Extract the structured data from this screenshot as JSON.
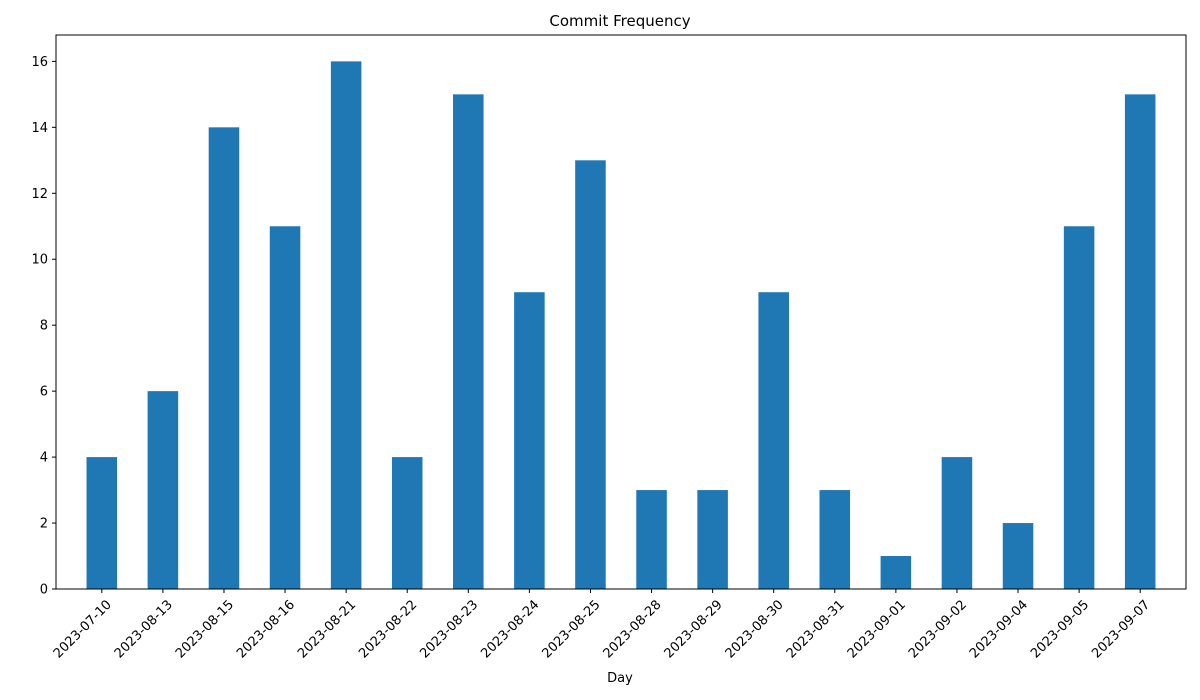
{
  "chart_data": {
    "type": "bar",
    "title": "Commit Frequency",
    "xlabel": "Day",
    "ylabel": "",
    "categories": [
      "2023-07-10",
      "2023-08-13",
      "2023-08-15",
      "2023-08-16",
      "2023-08-21",
      "2023-08-22",
      "2023-08-23",
      "2023-08-24",
      "2023-08-25",
      "2023-08-28",
      "2023-08-29",
      "2023-08-30",
      "2023-08-31",
      "2023-09-01",
      "2023-09-02",
      "2023-09-04",
      "2023-09-05",
      "2023-09-07"
    ],
    "values": [
      4,
      6,
      14,
      11,
      16,
      4,
      15,
      9,
      13,
      3,
      3,
      9,
      3,
      1,
      4,
      2,
      11,
      15
    ],
    "ylim": [
      0,
      16.8
    ],
    "yticks": [
      "0",
      "2",
      "4",
      "6",
      "8",
      "10",
      "12",
      "14",
      "16"
    ],
    "grid": false,
    "legend": "none",
    "bar_color": "#1f77b4"
  }
}
